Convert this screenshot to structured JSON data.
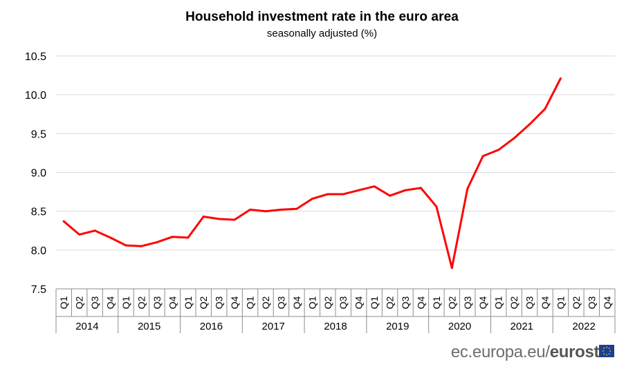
{
  "chart_data": {
    "type": "line",
    "title": "Household  investment  rate in  the euro  area",
    "subtitle": "seasonally adjusted (%)",
    "ylim": [
      7.5,
      10.5
    ],
    "yticks": [
      "10.5",
      "10.0",
      "9.5",
      "9.0",
      "8.5",
      "8.0",
      "7.5"
    ],
    "ytick_values": [
      10.5,
      10.0,
      9.5,
      9.0,
      8.5,
      8.0,
      7.5
    ],
    "grid": true,
    "years": [
      "2014",
      "2015",
      "2016",
      "2017",
      "2018",
      "2019",
      "2020",
      "2021",
      "2022"
    ],
    "quarters": [
      "Q1",
      "Q2",
      "Q3",
      "Q4"
    ],
    "series": [
      {
        "name": "Household investment rate",
        "color": "#ff0000",
        "values": [
          8.37,
          8.2,
          8.25,
          8.16,
          8.06,
          8.05,
          8.1,
          8.17,
          8.16,
          8.43,
          8.4,
          8.39,
          8.52,
          8.5,
          8.52,
          8.53,
          8.66,
          8.72,
          8.72,
          8.77,
          8.82,
          8.7,
          8.77,
          8.8,
          8.56,
          7.77,
          8.79,
          9.21,
          9.29,
          9.44,
          9.62,
          9.82,
          10.21
        ]
      }
    ]
  },
  "footer": {
    "source_prefix": "ec.europa.eu/",
    "source_brand": "eurostat"
  }
}
